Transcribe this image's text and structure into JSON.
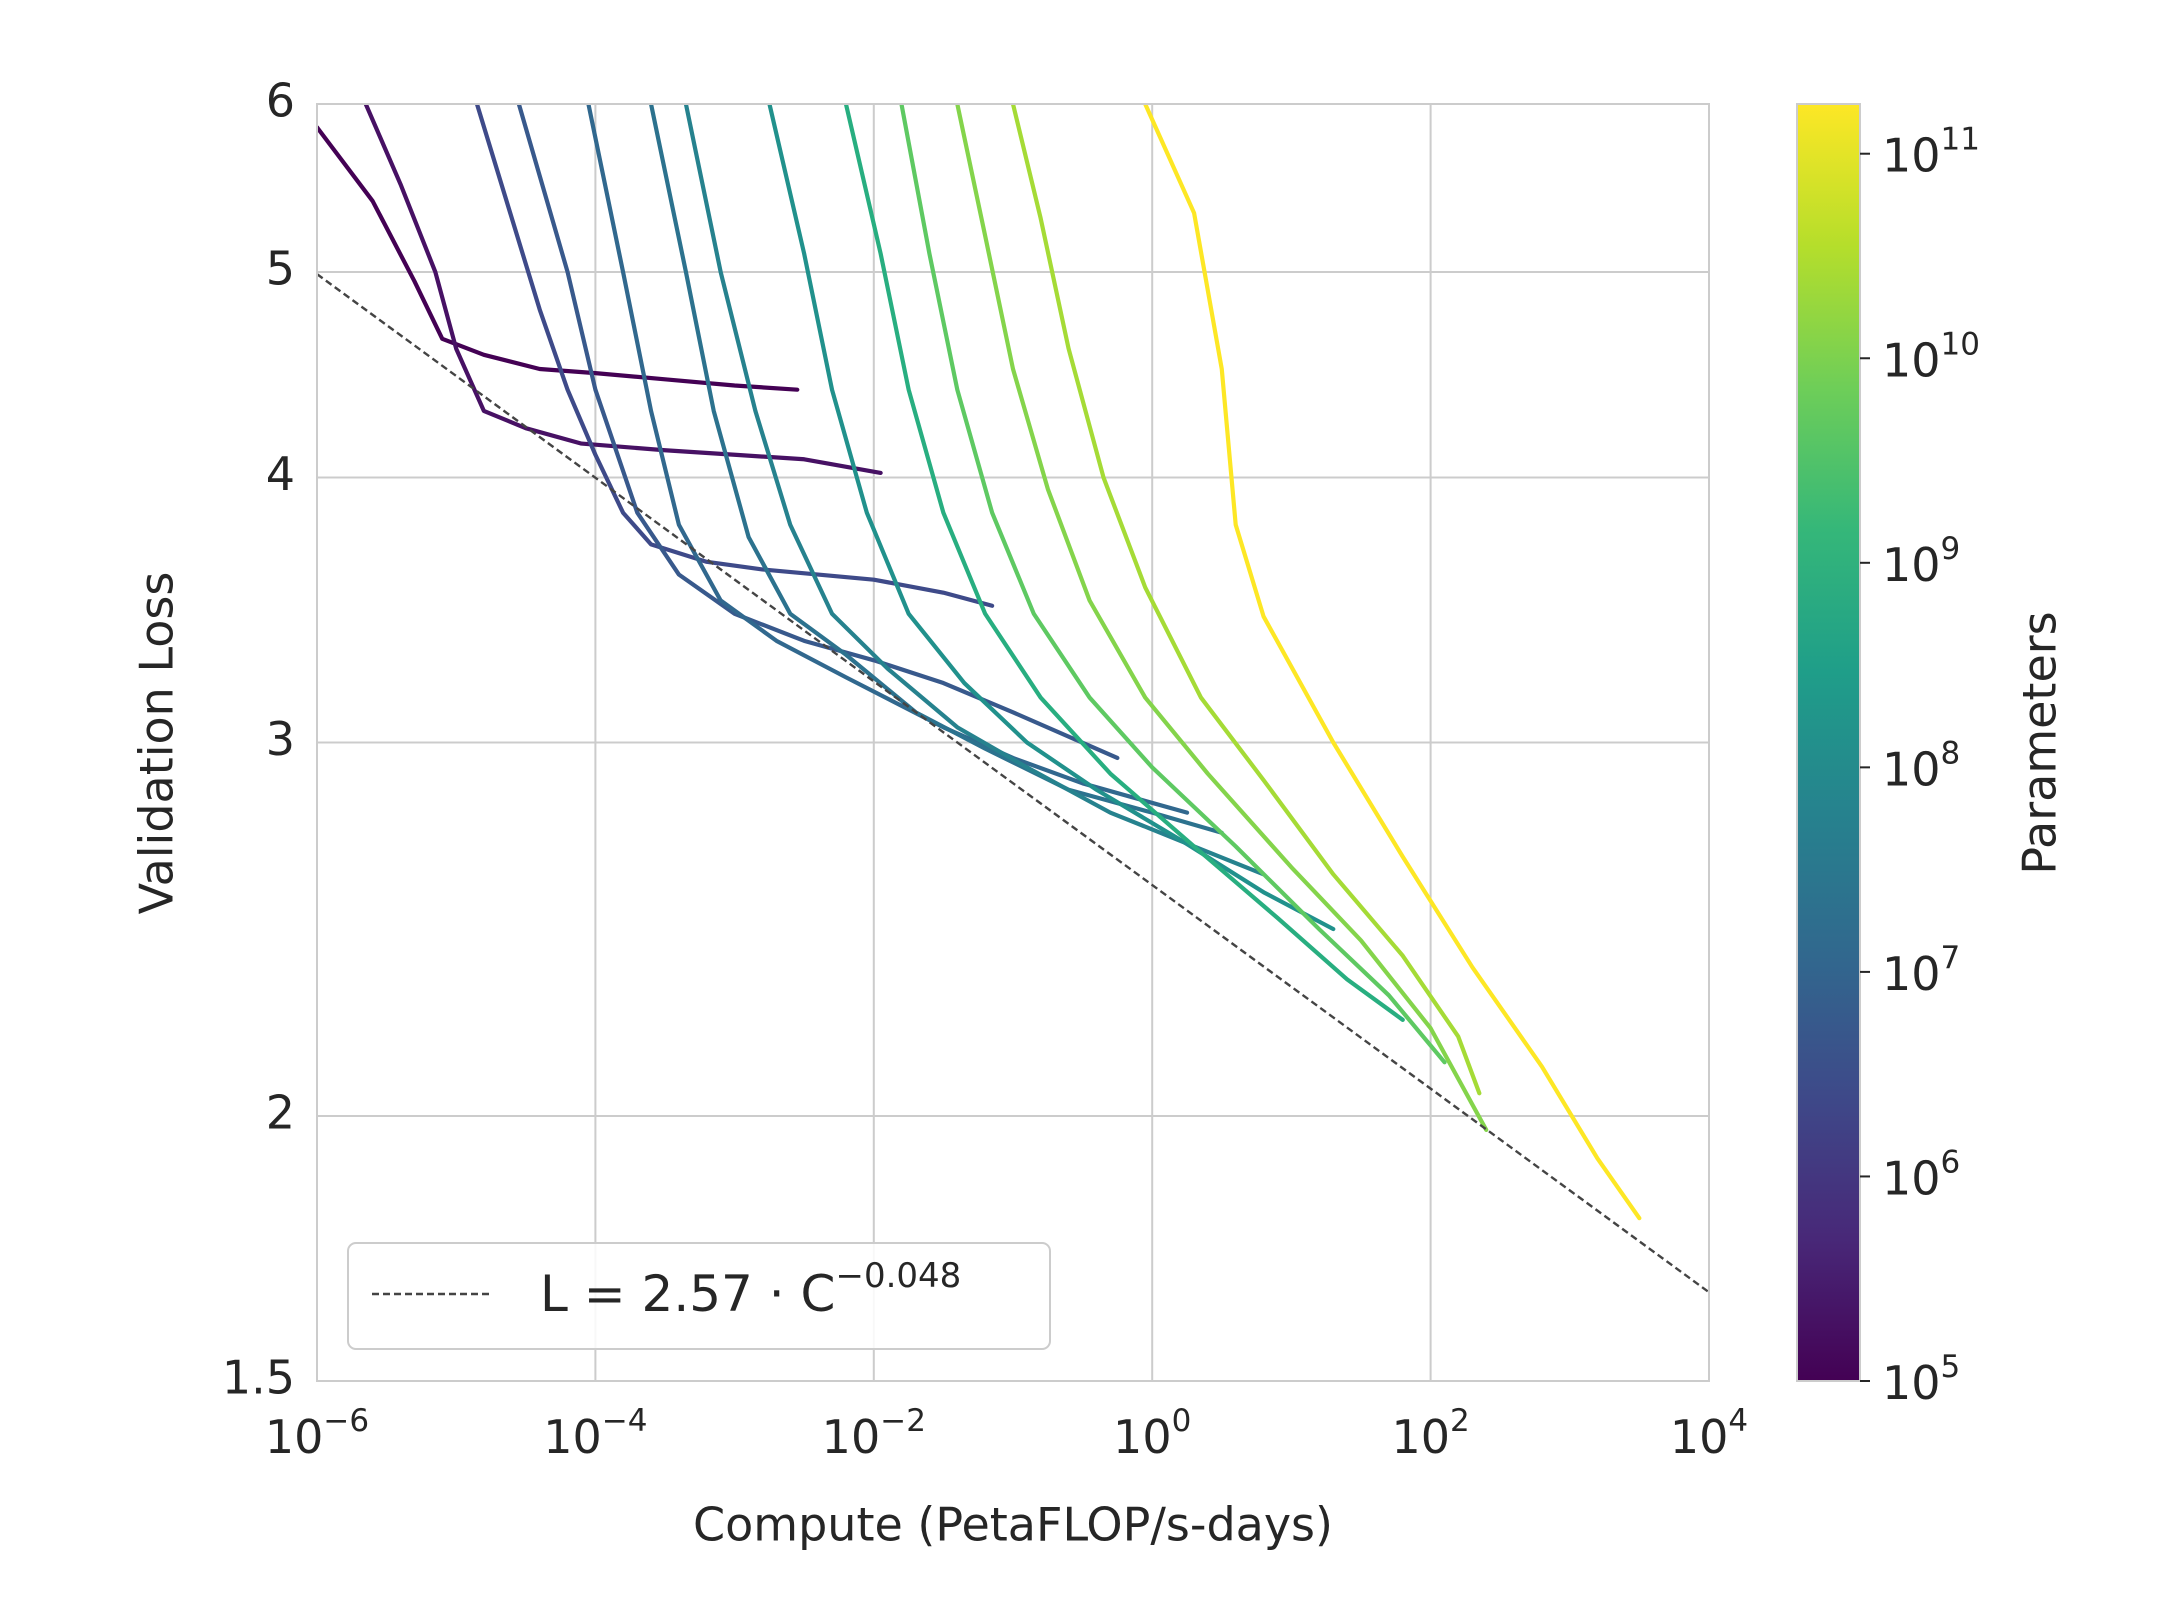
{
  "chart_data": {
    "type": "line",
    "xlabel": "Compute (PetaFLOP/s-days)",
    "ylabel": "Validation Loss",
    "xscale": "log",
    "yscale": "log",
    "grid": true,
    "xlim": [
      1e-06,
      10000
    ],
    "ylim": [
      1.5,
      6
    ],
    "xticks": [
      {
        "value": 1e-06,
        "label": "10",
        "superscript": "−6"
      },
      {
        "value": 0.0001,
        "label": "10",
        "superscript": "−4"
      },
      {
        "value": 0.01,
        "label": "10",
        "superscript": "−2"
      },
      {
        "value": 1,
        "label": "10",
        "superscript": "0"
      },
      {
        "value": 100,
        "label": "10",
        "superscript": "2"
      },
      {
        "value": 10000,
        "label": "10",
        "superscript": "4"
      }
    ],
    "yticks": [
      1.5,
      2,
      3,
      4,
      5,
      6
    ],
    "legend": "lower left",
    "fit": {
      "label": "L = 2.57 · C",
      "label_exponent": "−0.048",
      "coefficient": 2.57,
      "exponent": -0.048,
      "color": "#444444"
    },
    "series": [
      {
        "color": "#440154",
        "x": [
          1e-06,
          2.51e-06,
          5.01e-06,
          7.94e-06,
          1.58e-05,
          3.98e-05,
          0.0001,
          0.000316,
          0.001,
          0.00282
        ],
        "values": [
          5.85,
          5.4,
          4.95,
          4.65,
          4.57,
          4.5,
          4.48,
          4.45,
          4.42,
          4.4
        ]
      },
      {
        "color": "#471164",
        "x": [
          2.24e-06,
          3.98e-06,
          7.08e-06,
          1e-05,
          1.58e-05,
          3.16e-05,
          7.94e-05,
          0.000316,
          0.001,
          0.00316,
          0.0112
        ],
        "values": [
          6,
          5.5,
          5.0,
          4.6,
          4.3,
          4.22,
          4.15,
          4.12,
          4.1,
          4.08,
          4.02
        ]
      },
      {
        "color": "#3e4a89",
        "x": [
          1.41e-05,
          2.51e-05,
          3.98e-05,
          6.31e-05,
          0.0001,
          0.000158,
          0.000251,
          0.000631,
          0.00158,
          0.00398,
          0.01,
          0.0316,
          0.0708
        ],
        "values": [
          6,
          5.3,
          4.8,
          4.4,
          4.1,
          3.85,
          3.72,
          3.65,
          3.62,
          3.6,
          3.58,
          3.53,
          3.48
        ]
      },
      {
        "color": "#38598c",
        "x": [
          2.82e-05,
          6.31e-05,
          0.0001,
          0.0002,
          0.000398,
          0.001,
          0.00316,
          0.01,
          0.0316,
          0.1,
          0.562
        ],
        "values": [
          6,
          5,
          4.4,
          3.85,
          3.6,
          3.45,
          3.35,
          3.28,
          3.2,
          3.1,
          2.95
        ]
      },
      {
        "color": "#31688e",
        "x": [
          8.91e-05,
          0.000158,
          0.000251,
          0.000398,
          0.000794,
          0.002,
          0.00631,
          0.0316,
          0.1,
          0.316,
          1.78
        ],
        "values": [
          6,
          5,
          4.3,
          3.8,
          3.5,
          3.35,
          3.22,
          3.05,
          2.95,
          2.87,
          2.78
        ]
      },
      {
        "color": "#2c728e",
        "x": [
          0.000251,
          0.000447,
          0.000708,
          0.00126,
          0.00251,
          0.00631,
          0.02,
          0.0631,
          0.251,
          1,
          3.16
        ],
        "values": [
          6,
          5,
          4.3,
          3.75,
          3.45,
          3.3,
          3.1,
          2.98,
          2.85,
          2.78,
          2.72
        ]
      },
      {
        "color": "#26828e",
        "x": [
          0.000447,
          0.000794,
          0.00141,
          0.00251,
          0.00501,
          0.0126,
          0.0398,
          0.126,
          0.501,
          2,
          6.31
        ],
        "values": [
          6,
          5,
          4.3,
          3.8,
          3.45,
          3.25,
          3.05,
          2.92,
          2.78,
          2.68,
          2.6
        ]
      },
      {
        "color": "#21918c",
        "x": [
          0.00178,
          0.00316,
          0.00501,
          0.00891,
          0.0178,
          0.0447,
          0.126,
          0.398,
          1.58,
          6.31,
          20
        ],
        "values": [
          6,
          5.1,
          4.4,
          3.85,
          3.45,
          3.2,
          3.0,
          2.85,
          2.7,
          2.55,
          2.45
        ]
      },
      {
        "color": "#28ae80",
        "x": [
          0.00631,
          0.0112,
          0.0178,
          0.0316,
          0.0631,
          0.158,
          0.501,
          2,
          7.94,
          25.1,
          63.1
        ],
        "values": [
          6,
          5.1,
          4.4,
          3.85,
          3.45,
          3.15,
          2.9,
          2.68,
          2.48,
          2.32,
          2.22
        ]
      },
      {
        "color": "#5ec962",
        "x": [
          0.0158,
          0.0251,
          0.0398,
          0.0708,
          0.141,
          0.355,
          1,
          3.98,
          15.8,
          50.1,
          126
        ],
        "values": [
          6,
          5.1,
          4.4,
          3.85,
          3.45,
          3.15,
          2.92,
          2.68,
          2.45,
          2.28,
          2.12
        ]
      },
      {
        "color": "#84d44b",
        "x": [
          0.0398,
          0.0631,
          0.1,
          0.178,
          0.355,
          0.891,
          2.51,
          10,
          31.6,
          100,
          251
        ],
        "values": [
          6,
          5.2,
          4.5,
          3.95,
          3.5,
          3.15,
          2.9,
          2.62,
          2.42,
          2.2,
          1.97
        ]
      },
      {
        "color": "#a5db36",
        "x": [
          0.1,
          0.158,
          0.251,
          0.447,
          0.891,
          2.24,
          6.31,
          20,
          63.1,
          158,
          224
        ],
        "values": [
          6,
          5.3,
          4.6,
          4.0,
          3.55,
          3.15,
          2.88,
          2.6,
          2.38,
          2.18,
          2.05
        ]
      },
      {
        "color": "#fde725",
        "x": [
          0.891,
          2.0,
          3.16,
          3.98,
          6.31,
          20,
          63.1,
          200,
          631,
          1580,
          3160
        ],
        "values": [
          6,
          5.33,
          4.5,
          3.8,
          3.44,
          3.0,
          2.65,
          2.35,
          2.11,
          1.91,
          1.79
        ]
      }
    ],
    "colorbar": {
      "label": "Parameters",
      "scale": "log",
      "lim": [
        100000,
        175000000000
      ],
      "colors": [
        "#440154",
        "#482878",
        "#3e4989",
        "#31688e",
        "#26828e",
        "#1f9e89",
        "#35b779",
        "#6ece58",
        "#b5de2b",
        "#fde725"
      ],
      "ticks": [
        {
          "value": 100000,
          "label": "10",
          "superscript": "5"
        },
        {
          "value": 1000000,
          "label": "10",
          "superscript": "6"
        },
        {
          "value": 10000000,
          "label": "10",
          "superscript": "7"
        },
        {
          "value": 100000000,
          "label": "10",
          "superscript": "8"
        },
        {
          "value": 1000000000,
          "label": "10",
          "superscript": "9"
        },
        {
          "value": 10000000000,
          "label": "10",
          "superscript": "10"
        },
        {
          "value": 100000000000,
          "label": "10",
          "superscript": "11"
        }
      ]
    }
  }
}
